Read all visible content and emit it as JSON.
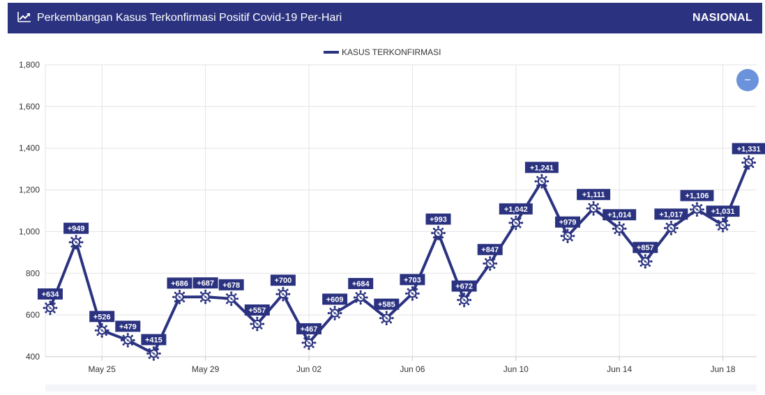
{
  "header": {
    "title": "Perkembangan Kasus Terkonfirmasi Positif Covid-19 Per-Hari",
    "region": "NASIONAL",
    "icon": "line-chart-icon",
    "background": "#2b3380"
  },
  "controls": {
    "zoom_out_icon": "minus-icon",
    "zoom_out_symbol": "−",
    "zoom_color": "#6b93db"
  },
  "chart_data": {
    "type": "line",
    "series": [
      {
        "name": "KASUS TERKONFIRMASI",
        "color": "#2b3380",
        "values": [
          634,
          949,
          526,
          479,
          415,
          686,
          687,
          678,
          557,
          700,
          467,
          609,
          684,
          585,
          703,
          993,
          672,
          847,
          1042,
          1241,
          979,
          1111,
          1014,
          857,
          1017,
          1106,
          1031,
          1331
        ],
        "labels": [
          "+634",
          "+949",
          "+526",
          "+479",
          "+415",
          "+686",
          "+687",
          "+678",
          "+557",
          "+700",
          "+467",
          "+609",
          "+684",
          "+585",
          "+703",
          "+993",
          "+672",
          "+847",
          "+1,042",
          "+1,241",
          "+979",
          "+1,111",
          "+1,014",
          "+857",
          "+1,017",
          "+1,106",
          "+1,031",
          "+1,331"
        ]
      }
    ],
    "x": [
      "May 23",
      "May 24",
      "May 25",
      "May 26",
      "May 27",
      "May 28",
      "May 29",
      "May 30",
      "May 31",
      "Jun 01",
      "Jun 02",
      "Jun 03",
      "Jun 04",
      "Jun 05",
      "Jun 06",
      "Jun 07",
      "Jun 08",
      "Jun 09",
      "Jun 10",
      "Jun 11",
      "Jun 12",
      "Jun 13",
      "Jun 14",
      "Jun 15",
      "Jun 16",
      "Jun 17",
      "Jun 18",
      "Jun 19"
    ],
    "x_ticks": [
      "May 25",
      "May 29",
      "Jun 02",
      "Jun 06",
      "Jun 10",
      "Jun 14",
      "Jun 18"
    ],
    "y_ticks": [
      "400",
      "600",
      "800",
      "1,000",
      "1,200",
      "1,400",
      "1,600",
      "1,800"
    ],
    "ylim": [
      400,
      1800
    ],
    "legend": "top-center",
    "grid": true,
    "marker_icon": "virus-icon"
  }
}
